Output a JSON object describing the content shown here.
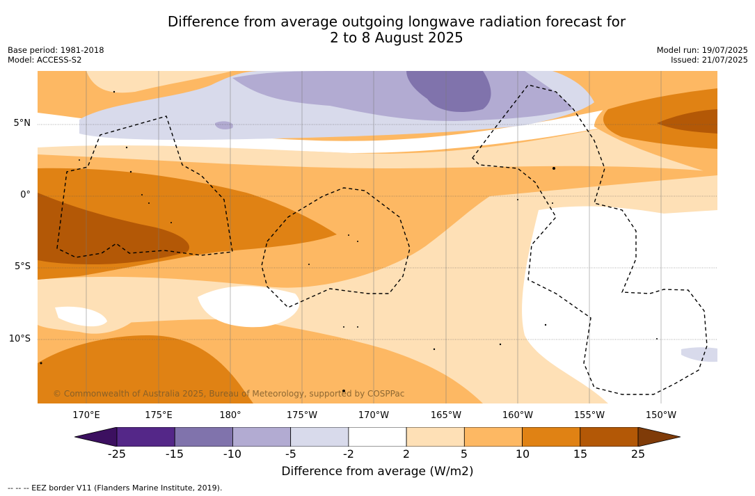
{
  "title_line1": "Difference from average outgoing longwave radiation forecast for",
  "title_line2": "2 to 8 August 2025",
  "meta_left": {
    "base_period": "Base period: 1981-2018",
    "model": "Model: ACCESS-S2"
  },
  "meta_right": {
    "model_run": "Model run: 19/07/2025",
    "issued": "Issued: 21/07/2025"
  },
  "lat_labels": [
    "5°N",
    "0°",
    "5°S",
    "10°S"
  ],
  "lon_labels": [
    "170°E",
    "175°E",
    "180°",
    "175°W",
    "170°W",
    "165°W",
    "160°W",
    "155°W",
    "150°W"
  ],
  "credit": "© Commonwealth of Australia 2025, Bureau of Meteorology, supported by COSPPac",
  "colorbar": {
    "label": "Difference from average (W/m2)",
    "ticks": [
      "-25",
      "-15",
      "-10",
      "-5",
      "-2",
      "2",
      "5",
      "10",
      "15",
      "25"
    ],
    "colors": [
      "#3c1060",
      "#542788",
      "#8073ac",
      "#b2abd2",
      "#d8daeb",
      "#ffffff",
      "#fee0b6",
      "#fdb863",
      "#e08214",
      "#b35806",
      "#7f3b08"
    ]
  },
  "footer": "--  --  -- EEZ border V11 (Flanders Marine Institute, 2019)."
}
